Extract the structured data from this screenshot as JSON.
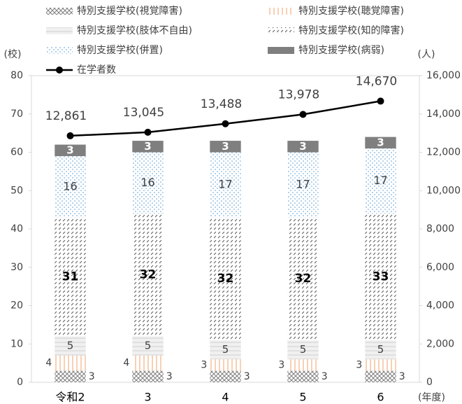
{
  "chart_data": {
    "type": "bar",
    "categories": [
      "令和2",
      "3",
      "4",
      "5",
      "6"
    ],
    "x_label": "(年度)",
    "y_label": "(校)",
    "y2_label": "(人)",
    "stacked": true,
    "series": [
      {
        "name": "特別支援学校(視覚障害)",
        "color": "#7f7f7f",
        "values": [
          3,
          3,
          3,
          3,
          3
        ]
      },
      {
        "name": "特別支援学校(聴覚障害)",
        "color": "#f4b183",
        "values": [
          4,
          4,
          3,
          3,
          3
        ]
      },
      {
        "name": "特別支援学校(肢体不自由)",
        "color": "#d0d0d0",
        "values": [
          5,
          5,
          5,
          5,
          5
        ]
      },
      {
        "name": "特別支援学校(知的障害)",
        "color": "#595959",
        "values": [
          31,
          32,
          32,
          32,
          33
        ]
      },
      {
        "name": "特別支援学校(併置)",
        "color": "#7fb2dc",
        "values": [
          16,
          16,
          17,
          17,
          17
        ]
      },
      {
        "name": "特別支援学校(病弱)",
        "color": "#7f7f7f",
        "values": [
          3,
          3,
          3,
          3,
          3
        ]
      },
      {
        "name": "在学者数",
        "type": "line",
        "axis": "y2",
        "color": "#000000",
        "values": [
          12861,
          13045,
          13488,
          13978,
          14670
        ],
        "value_labels": [
          "12,861",
          "13,045",
          "13,488",
          "13,978",
          "14,670"
        ]
      }
    ],
    "ylim": [
      0,
      80
    ],
    "yticks": [
      0,
      10,
      20,
      30,
      40,
      50,
      60,
      70,
      80
    ],
    "y2lim": [
      0,
      16000
    ],
    "y2ticks": [
      0,
      {
        "value": 2000,
        "label": "2,000"
      },
      {
        "value": 4000,
        "label": "4,000"
      },
      {
        "value": 6000,
        "label": "6,000"
      },
      {
        "value": 8000,
        "label": "8,000"
      },
      {
        "value": 10000,
        "label": "10,000"
      },
      {
        "value": 12000,
        "label": "12,000"
      },
      {
        "value": 14000,
        "label": "14,000"
      },
      {
        "value": 16000,
        "label": "16,000"
      }
    ],
    "legend": "top"
  }
}
